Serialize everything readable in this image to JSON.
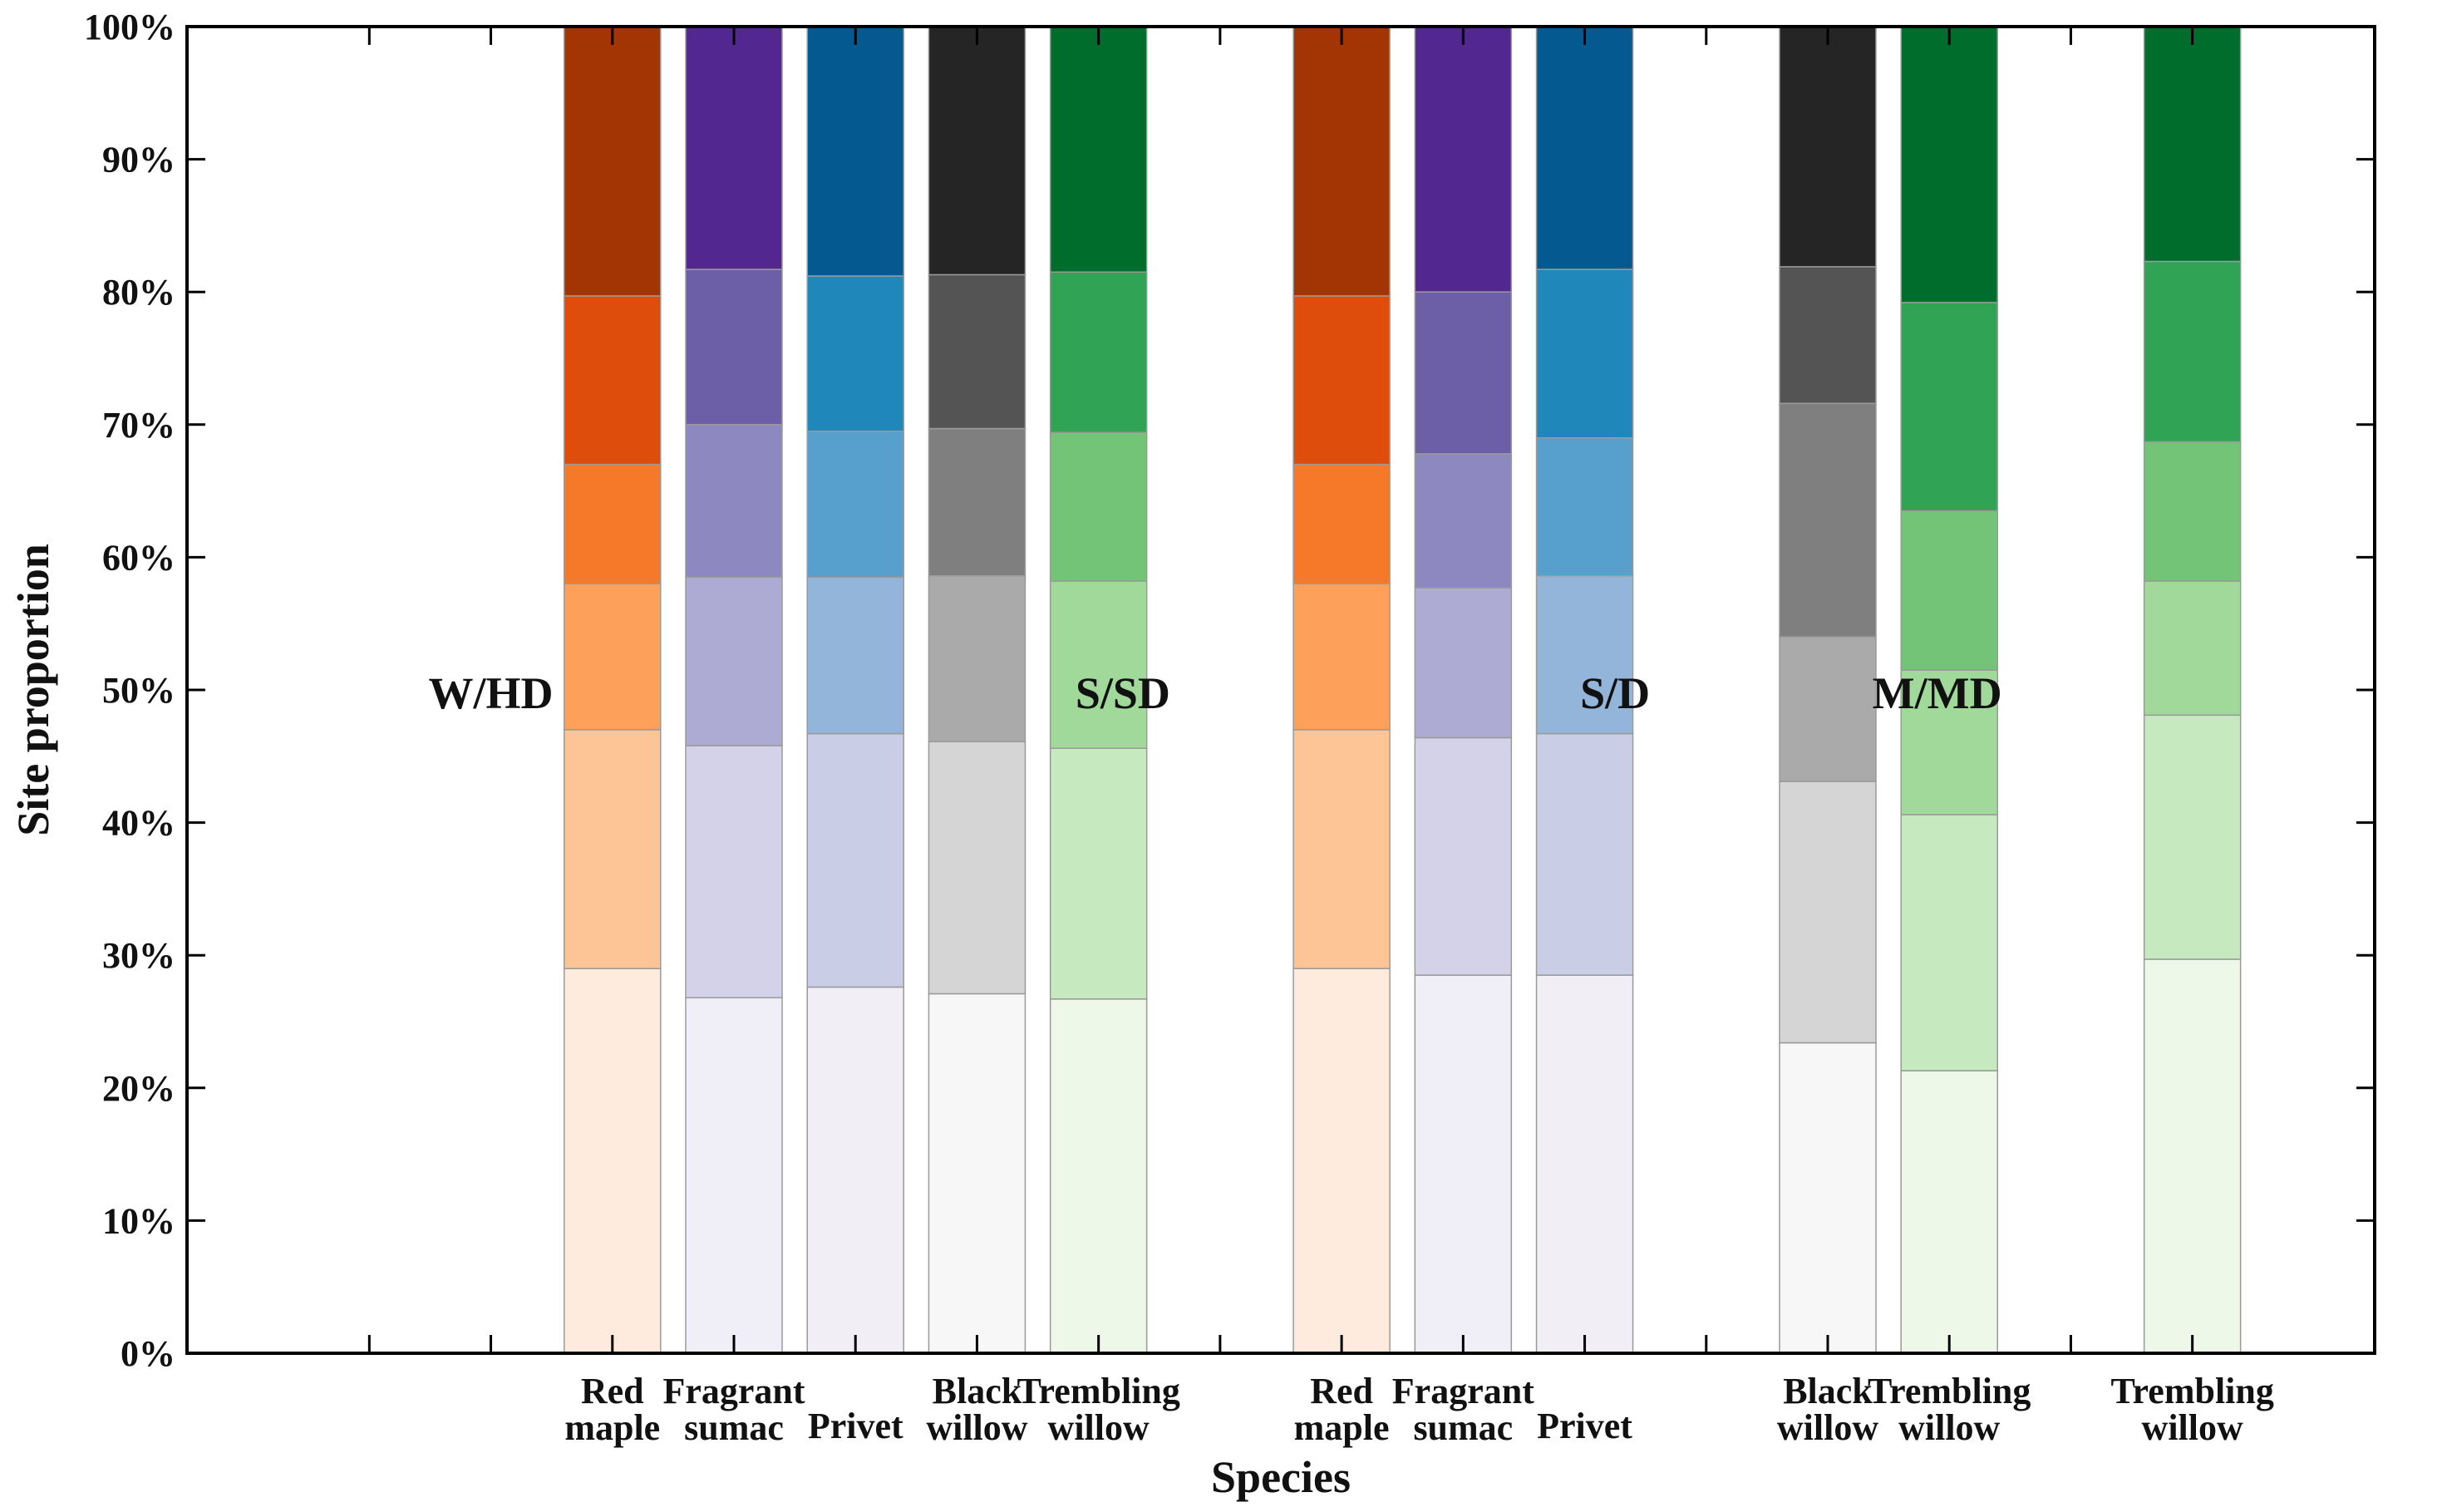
{
  "chart_data": {
    "type": "bar",
    "stacked": true,
    "title": "",
    "xlabel": "Species",
    "ylabel": "Site proportion",
    "ylim": [
      0,
      100
    ],
    "yticks": [
      "0%",
      "10%",
      "20%",
      "30%",
      "40%",
      "50%",
      "60%",
      "70%",
      "80%",
      "90%",
      "100%"
    ],
    "slots": 16,
    "groups": [
      {
        "label": "W/HD",
        "label_slot": 2
      },
      {
        "label": "S/SD",
        "label_slot": 7.2
      },
      {
        "label": "S/D",
        "label_slot": 11.25
      },
      {
        "label": "M/MD",
        "label_slot": 13.9
      }
    ],
    "bars": [
      {
        "group": "W/HD",
        "slot": 3,
        "label": [
          "Red",
          "maple"
        ],
        "palette": "orange",
        "boundaries": [
          29,
          47,
          58,
          67,
          79.7,
          100
        ]
      },
      {
        "group": "W/HD",
        "slot": 4,
        "label": [
          "Fragrant",
          "sumac"
        ],
        "palette": "purple",
        "boundaries": [
          26.8,
          45.8,
          58.5,
          70,
          81.7,
          100
        ]
      },
      {
        "group": "W/HD",
        "slot": 5,
        "label": [
          "Privet"
        ],
        "palette": "blue",
        "boundaries": [
          27.6,
          46.7,
          58.5,
          69.5,
          81.2,
          100
        ]
      },
      {
        "group": "W/HD",
        "slot": 6,
        "label": [
          "Black",
          "willow"
        ],
        "palette": "gray",
        "boundaries": [
          27.1,
          46.1,
          58.6,
          69.7,
          81.3,
          100
        ]
      },
      {
        "group": "W/HD",
        "slot": 7,
        "label": [
          "Trembling",
          "willow"
        ],
        "palette": "green",
        "boundaries": [
          26.7,
          45.6,
          58.2,
          69.4,
          81.5,
          100
        ]
      },
      {
        "group": "S/SD",
        "slot": 9,
        "label": [
          "Red",
          "maple"
        ],
        "palette": "orange",
        "boundaries": [
          29,
          47,
          58,
          67,
          79.7,
          100
        ]
      },
      {
        "group": "S/SD",
        "slot": 10,
        "label": [
          "Fragrant",
          "sumac"
        ],
        "palette": "purple",
        "boundaries": [
          28.5,
          46.4,
          57.7,
          67.8,
          80,
          100
        ]
      },
      {
        "group": "S/SD",
        "slot": 11,
        "label": [
          "Privet"
        ],
        "palette": "blue",
        "boundaries": [
          28.5,
          46.7,
          58.6,
          69,
          81.7,
          100
        ]
      },
      {
        "group": "S/D",
        "slot": 13,
        "label": [
          "Black",
          "willow"
        ],
        "palette": "gray",
        "boundaries": [
          23.4,
          43.1,
          54,
          71.6,
          81.9,
          100
        ]
      },
      {
        "group": "S/D",
        "slot": 14,
        "label": [
          "Trembling",
          "willow"
        ],
        "palette": "green",
        "boundaries": [
          21.3,
          40.6,
          51.5,
          63.5,
          79.2,
          100
        ]
      },
      {
        "group": "M/MD",
        "slot": 16,
        "label": [
          "Trembling",
          "willow"
        ],
        "palette": "green",
        "boundaries": [
          29.7,
          48.1,
          58.2,
          68.7,
          82.3,
          100
        ]
      }
    ],
    "palettes": {
      "orange": [
        "#feebdd",
        "#fdc596",
        "#fda15a",
        "#f6792a",
        "#de4d0b",
        "#a33505"
      ],
      "purple": [
        "#f0eff7",
        "#d4d2e8",
        "#adabd3",
        "#8d89c0",
        "#6c5fa8",
        "#532790"
      ],
      "blue": [
        "#f1eef6",
        "#c9cee6",
        "#93b5d9",
        "#579fcc",
        "#2087bb",
        "#045990"
      ],
      "gray": [
        "#f7f7f7",
        "#d5d5d5",
        "#aaaaaa",
        "#7f7f7f",
        "#545454",
        "#252525"
      ],
      "green": [
        "#edf8e9",
        "#c7e9c0",
        "#a1d99b",
        "#73c476",
        "#31a354",
        "#006d2c"
      ]
    }
  }
}
